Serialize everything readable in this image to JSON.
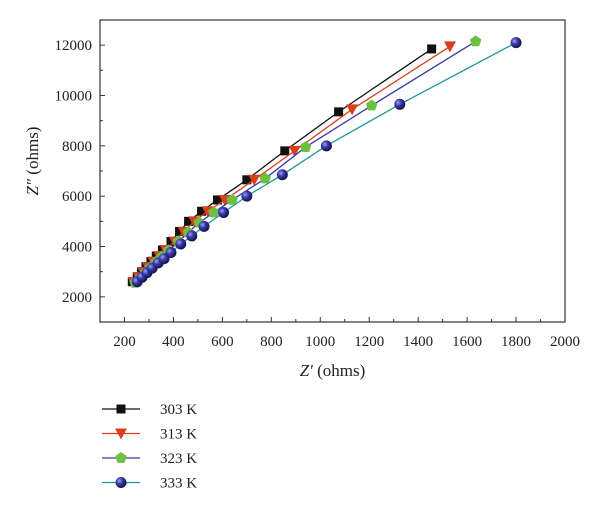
{
  "chart_data": {
    "type": "line",
    "xlabel_symbol": "Z′",
    "xlabel_unit": " (ohms)",
    "ylabel_symbol": "Z″",
    "ylabel_unit": " (ohms)",
    "xlim": [
      100,
      2000
    ],
    "ylim": [
      1000,
      13000
    ],
    "x_ticks": [
      200,
      400,
      600,
      800,
      1000,
      1200,
      1400,
      1600,
      1800,
      2000
    ],
    "y_ticks": [
      2000,
      4000,
      6000,
      8000,
      10000,
      12000
    ],
    "grid": false,
    "legend_placement": "bottom-left, below plot",
    "series": [
      {
        "name": "303 K",
        "marker": "square",
        "marker_color": "#111111",
        "line_color": "#111111",
        "points": [
          [
            232,
            2600
          ],
          [
            252,
            2800
          ],
          [
            270,
            3000
          ],
          [
            288,
            3200
          ],
          [
            308,
            3400
          ],
          [
            330,
            3620
          ],
          [
            355,
            3860
          ],
          [
            390,
            4200
          ],
          [
            425,
            4600
          ],
          [
            462,
            5000
          ],
          [
            515,
            5400
          ],
          [
            580,
            5850
          ],
          [
            700,
            6650
          ],
          [
            855,
            7800
          ],
          [
            1075,
            9350
          ],
          [
            1455,
            11850
          ]
        ]
      },
      {
        "name": "313 K",
        "marker": "triangle-down",
        "marker_color": "#d9401a",
        "line_color": "#d9401a",
        "points": [
          [
            237,
            2580
          ],
          [
            258,
            2780
          ],
          [
            277,
            2980
          ],
          [
            296,
            3180
          ],
          [
            318,
            3400
          ],
          [
            342,
            3620
          ],
          [
            368,
            3860
          ],
          [
            405,
            4200
          ],
          [
            442,
            4580
          ],
          [
            485,
            5000
          ],
          [
            540,
            5400
          ],
          [
            610,
            5850
          ],
          [
            730,
            6650
          ],
          [
            895,
            7800
          ],
          [
            1130,
            9450
          ],
          [
            1530,
            11950
          ]
        ]
      },
      {
        "name": "323 K",
        "marker": "pentagon",
        "marker_color": "#6cbf3f",
        "line_color": "#3a3aa8",
        "points": [
          [
            243,
            2560
          ],
          [
            265,
            2760
          ],
          [
            285,
            2960
          ],
          [
            305,
            3160
          ],
          [
            328,
            3380
          ],
          [
            352,
            3600
          ],
          [
            380,
            3840
          ],
          [
            420,
            4200
          ],
          [
            460,
            4560
          ],
          [
            505,
            4950
          ],
          [
            565,
            5350
          ],
          [
            640,
            5850
          ],
          [
            775,
            6700
          ],
          [
            940,
            7950
          ],
          [
            1210,
            9600
          ],
          [
            1635,
            12150
          ]
        ]
      },
      {
        "name": "333 K",
        "marker": "sphere",
        "marker_color": "#2a2a8c",
        "line_color": "#1e9a96",
        "points": [
          [
            252,
            2600
          ],
          [
            272,
            2780
          ],
          [
            292,
            2960
          ],
          [
            313,
            3140
          ],
          [
            338,
            3350
          ],
          [
            362,
            3520
          ],
          [
            390,
            3760
          ],
          [
            430,
            4100
          ],
          [
            475,
            4420
          ],
          [
            525,
            4800
          ],
          [
            605,
            5350
          ],
          [
            700,
            6000
          ],
          [
            845,
            6850
          ],
          [
            1025,
            8000
          ],
          [
            1325,
            9650
          ],
          [
            1800,
            12100
          ]
        ]
      }
    ]
  }
}
